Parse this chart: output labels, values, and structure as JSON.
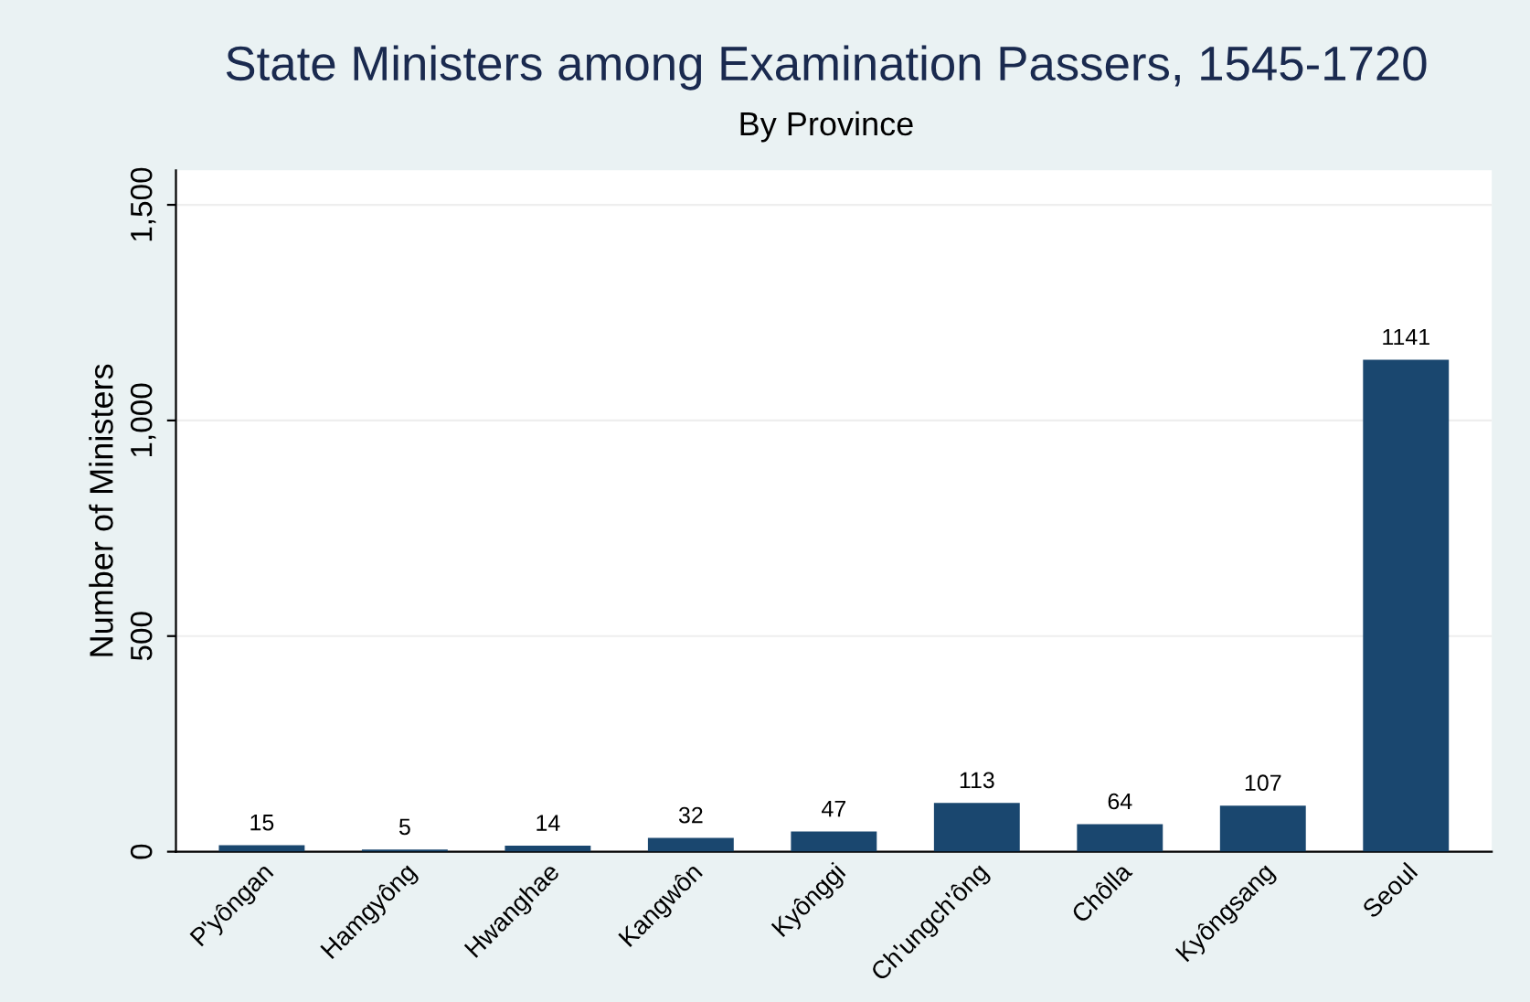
{
  "chart_data": {
    "type": "bar",
    "title": "State Ministers among Examination Passers, 1545-1720",
    "subtitle": "By Province",
    "ylabel": "Number of Ministers",
    "categories": [
      "P'yôngan",
      "Hamgyông",
      "Hwanghae",
      "Kangwôn",
      "Kyônggi",
      "Ch'ungch'ông",
      "Chôlla",
      "Kyôngsang",
      "Seoul"
    ],
    "values": [
      15,
      5,
      14,
      32,
      47,
      113,
      64,
      107,
      1141
    ],
    "color": "#1a476f",
    "ylim": [
      0,
      1580
    ],
    "yticks": [
      0,
      {
        "value": 500,
        "label": "500"
      },
      {
        "value": 1000,
        "label": "1,000"
      },
      {
        "value": 1500,
        "label": "1,500"
      }
    ],
    "grid": "y",
    "data_labels": true
  }
}
